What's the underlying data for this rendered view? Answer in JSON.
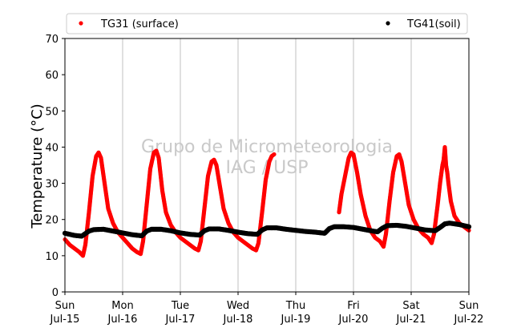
{
  "chart_data": {
    "type": "scatter",
    "title": "",
    "ylabel": "Temperature (°C)",
    "xlabel": "",
    "ylim": [
      0,
      70
    ],
    "y_ticks": [
      0,
      10,
      20,
      30,
      40,
      50,
      60,
      70
    ],
    "xlim": [
      "2018-07-15 00:00",
      "2018-07-22 00:00"
    ],
    "x_ticks": [
      {
        "day": "Sun",
        "date": "Jul-15"
      },
      {
        "day": "Mon",
        "date": "Jul-16"
      },
      {
        "day": "Tue",
        "date": "Jul-17"
      },
      {
        "day": "Wed",
        "date": "Jul-18"
      },
      {
        "day": "Thu",
        "date": "Jul-19"
      },
      {
        "day": "Fri",
        "date": "Jul-20"
      },
      {
        "day": "Sat",
        "date": "Jul-21"
      },
      {
        "day": "Sun",
        "date": "Jul-22"
      }
    ],
    "grid": "vertical",
    "legend_position": "top",
    "watermark": [
      "Grupo de Micrometeorologia",
      "IAG / USP"
    ],
    "series": [
      {
        "name": "TG31 (surface)",
        "color": "#ff0000",
        "points": [
          [
            "Jul-15 00:00",
            14.5
          ],
          [
            "Jul-15 02:00",
            13.0
          ],
          [
            "Jul-15 04:00",
            12.0
          ],
          [
            "Jul-15 06:00",
            11.0
          ],
          [
            "Jul-15 07:30",
            10.0
          ],
          [
            "Jul-15 08:30",
            13.0
          ],
          [
            "Jul-15 10:00",
            22.0
          ],
          [
            "Jul-15 11:30",
            32.0
          ],
          [
            "Jul-15 13:00",
            37.5
          ],
          [
            "Jul-15 14:00",
            38.5
          ],
          [
            "Jul-15 15:00",
            37.0
          ],
          [
            "Jul-15 16:30",
            30.0
          ],
          [
            "Jul-15 18:00",
            23.0
          ],
          [
            "Jul-15 20:00",
            19.0
          ],
          [
            "Jul-15 22:00",
            16.5
          ],
          [
            "Jul-16 00:00",
            15.0
          ],
          [
            "Jul-16 02:00",
            13.5
          ],
          [
            "Jul-16 04:00",
            12.0
          ],
          [
            "Jul-16 06:00",
            11.0
          ],
          [
            "Jul-16 07:30",
            10.5
          ],
          [
            "Jul-16 08:30",
            14.0
          ],
          [
            "Jul-16 10:00",
            24.0
          ],
          [
            "Jul-16 11:30",
            34.0
          ],
          [
            "Jul-16 13:00",
            38.5
          ],
          [
            "Jul-16 14:00",
            39.0
          ],
          [
            "Jul-16 15:00",
            37.0
          ],
          [
            "Jul-16 16:30",
            28.0
          ],
          [
            "Jul-16 18:00",
            22.0
          ],
          [
            "Jul-16 20:00",
            18.5
          ],
          [
            "Jul-16 22:00",
            16.5
          ],
          [
            "Jul-17 00:00",
            15.0
          ],
          [
            "Jul-17 02:00",
            14.0
          ],
          [
            "Jul-17 04:00",
            13.0
          ],
          [
            "Jul-17 06:00",
            12.0
          ],
          [
            "Jul-17 07:30",
            11.5
          ],
          [
            "Jul-17 08:30",
            14.0
          ],
          [
            "Jul-17 10:00",
            23.0
          ],
          [
            "Jul-17 11:30",
            32.0
          ],
          [
            "Jul-17 13:00",
            36.0
          ],
          [
            "Jul-17 14:00",
            36.5
          ],
          [
            "Jul-17 15:00",
            35.0
          ],
          [
            "Jul-17 16:30",
            29.0
          ],
          [
            "Jul-17 18:00",
            23.0
          ],
          [
            "Jul-17 20:00",
            19.0
          ],
          [
            "Jul-17 22:00",
            16.5
          ],
          [
            "Jul-18 00:00",
            15.0
          ],
          [
            "Jul-18 02:00",
            14.0
          ],
          [
            "Jul-18 04:00",
            13.0
          ],
          [
            "Jul-18 06:00",
            12.0
          ],
          [
            "Jul-18 07:30",
            11.5
          ],
          [
            "Jul-18 08:30",
            13.5
          ],
          [
            "Jul-18 10:00",
            22.0
          ],
          [
            "Jul-18 11:30",
            31.0
          ],
          [
            "Jul-18 13:00",
            36.0
          ],
          [
            "Jul-18 14:00",
            37.5
          ],
          [
            "Jul-18 15:00",
            38.0
          ],
          [
            "Jul-19 18:00",
            22.0
          ],
          [
            "Jul-19 19:00",
            27.0
          ],
          [
            "Jul-19 20:30",
            32.0
          ],
          [
            "Jul-19 22:00",
            37.0
          ],
          [
            "Jul-19 23:00",
            38.5
          ],
          [
            "Jul-20 00:00",
            38.0
          ],
          [
            "Jul-20 01:30",
            33.0
          ],
          [
            "Jul-20 03:00",
            27.0
          ],
          [
            "Jul-20 05:00",
            21.0
          ],
          [
            "Jul-20 07:00",
            17.0
          ],
          [
            "Jul-20 09:00",
            15.0
          ],
          [
            "Jul-20 11:00",
            14.0
          ],
          [
            "Jul-20 12:30",
            12.5
          ],
          [
            "Jul-20 13:30",
            16.0
          ],
          [
            "Jul-20 15:00",
            25.0
          ],
          [
            "Jul-20 16:30",
            33.0
          ],
          [
            "Jul-20 18:00",
            37.5
          ],
          [
            "Jul-20 19:00",
            38.0
          ],
          [
            "Jul-20 20:00",
            36.0
          ],
          [
            "Jul-20 21:30",
            30.0
          ],
          [
            "Jul-20 23:00",
            24.0
          ],
          [
            "Jul-21 01:00",
            20.0
          ],
          [
            "Jul-21 03:00",
            17.5
          ],
          [
            "Jul-21 05:00",
            16.0
          ],
          [
            "Jul-21 07:00",
            15.0
          ],
          [
            "Jul-21 08:30",
            13.5
          ],
          [
            "Jul-21 09:30",
            16.0
          ],
          [
            "Jul-21 11:00",
            24.0
          ],
          [
            "Jul-21 12:00",
            30.0
          ],
          [
            "Jul-21 13:00",
            35.0
          ],
          [
            "Jul-21 13:30",
            36.5
          ],
          [
            "Jul-21 14:00",
            40.0
          ],
          [
            "Jul-21 14:30",
            35.0
          ],
          [
            "Jul-21 15:00",
            33.0
          ],
          [
            "Jul-21 15:30",
            30.0
          ],
          [
            "Jul-21 16:30",
            25.0
          ],
          [
            "Jul-21 18:00",
            21.0
          ],
          [
            "Jul-21 20:00",
            19.0
          ],
          [
            "Jul-21 22:00",
            18.0
          ],
          [
            "Jul-22 00:00",
            17.0
          ]
        ]
      },
      {
        "name": "TG41(soil)",
        "color": "#000000",
        "points": [
          [
            "Jul-15 00:00",
            16.2
          ],
          [
            "Jul-15 04:00",
            15.6
          ],
          [
            "Jul-15 07:00",
            15.4
          ],
          [
            "Jul-15 10:00",
            16.8
          ],
          [
            "Jul-15 12:00",
            17.2
          ],
          [
            "Jul-15 16:00",
            17.3
          ],
          [
            "Jul-15 20:00",
            16.8
          ],
          [
            "Jul-16 00:00",
            16.3
          ],
          [
            "Jul-16 04:00",
            15.8
          ],
          [
            "Jul-16 08:00",
            15.5
          ],
          [
            "Jul-16 10:00",
            16.8
          ],
          [
            "Jul-16 12:00",
            17.3
          ],
          [
            "Jul-16 16:00",
            17.3
          ],
          [
            "Jul-16 20:00",
            16.9
          ],
          [
            "Jul-17 00:00",
            16.3
          ],
          [
            "Jul-17 04:00",
            15.9
          ],
          [
            "Jul-17 08:00",
            15.7
          ],
          [
            "Jul-17 10:00",
            16.9
          ],
          [
            "Jul-17 12:00",
            17.4
          ],
          [
            "Jul-17 16:00",
            17.4
          ],
          [
            "Jul-17 20:00",
            17.0
          ],
          [
            "Jul-18 00:00",
            16.5
          ],
          [
            "Jul-18 04:00",
            16.1
          ],
          [
            "Jul-18 08:00",
            15.9
          ],
          [
            "Jul-18 10:00",
            17.1
          ],
          [
            "Jul-18 12:00",
            17.7
          ],
          [
            "Jul-18 16:00",
            17.7
          ],
          [
            "Jul-18 20:00",
            17.3
          ],
          [
            "Jul-19 00:00",
            17.0
          ],
          [
            "Jul-19 04:00",
            16.7
          ],
          [
            "Jul-19 08:00",
            16.5
          ],
          [
            "Jul-19 12:00",
            16.2
          ],
          [
            "Jul-19 14:00",
            17.5
          ],
          [
            "Jul-19 16:00",
            18.0
          ],
          [
            "Jul-19 20:00",
            18.0
          ],
          [
            "Jul-20 00:00",
            17.8
          ],
          [
            "Jul-20 04:00",
            17.3
          ],
          [
            "Jul-20 08:00",
            16.8
          ],
          [
            "Jul-20 10:00",
            16.6
          ],
          [
            "Jul-20 12:00",
            17.6
          ],
          [
            "Jul-20 14:00",
            18.3
          ],
          [
            "Jul-20 18:00",
            18.4
          ],
          [
            "Jul-20 22:00",
            18.1
          ],
          [
            "Jul-21 02:00",
            17.6
          ],
          [
            "Jul-21 06:00",
            17.1
          ],
          [
            "Jul-21 10:00",
            16.9
          ],
          [
            "Jul-21 12:00",
            17.8
          ],
          [
            "Jul-21 14:00",
            18.8
          ],
          [
            "Jul-21 16:00",
            19.0
          ],
          [
            "Jul-21 20:00",
            18.6
          ],
          [
            "Jul-22 00:00",
            18.0
          ]
        ]
      }
    ]
  }
}
